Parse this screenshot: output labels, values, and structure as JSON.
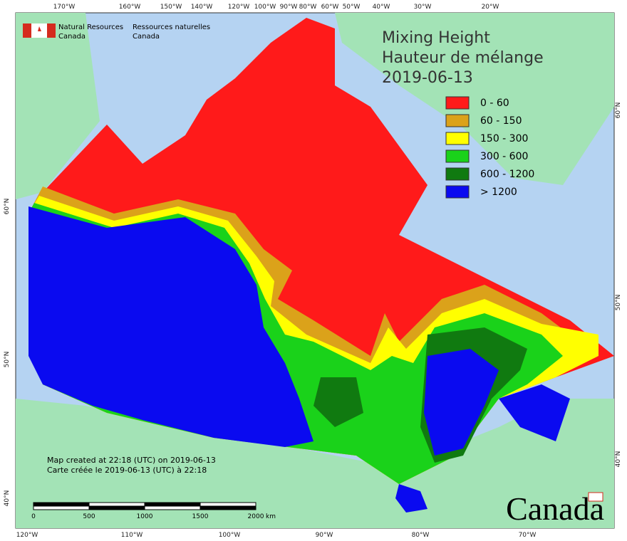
{
  "header": {
    "agency_en": "Natural Resources",
    "country_en": "Canada",
    "agency_fr": "Ressources naturelles",
    "country_fr": "Canada"
  },
  "title": {
    "line1": "Mixing Height",
    "line2": "Hauteur de mélange",
    "date": "2019-06-13"
  },
  "legend": [
    {
      "label": "0 - 60",
      "color": "#ff1a1a"
    },
    {
      "label": "60 - 150",
      "color": "#dba21a"
    },
    {
      "label": "150 - 300",
      "color": "#ffff00"
    },
    {
      "label": "300 - 600",
      "color": "#1ad21a"
    },
    {
      "label": "600 - 1200",
      "color": "#107a10"
    },
    {
      "label": "> 1200",
      "color": "#0a0af0"
    }
  ],
  "graticule": {
    "top": [
      "170°W",
      "160°W",
      "150°W",
      "140°W",
      "120°W",
      "100°W",
      "90°W",
      "80°W",
      "60°W",
      "50°W",
      "40°W",
      "30°W",
      "20°W"
    ],
    "bottom": [
      "120°W",
      "110°W",
      "100°W",
      "90°W",
      "80°W",
      "70°W"
    ],
    "left": [
      "60°N",
      "50°N",
      "40°N"
    ],
    "right": [
      "60°N",
      "50°N",
      "40°N"
    ]
  },
  "notes": {
    "line1": "Map created at 22:18 (UTC) on 2019-06-13",
    "line2": "Carte créée le 2019-06-13 (UTC) à 22:18"
  },
  "scale_bar": {
    "labels": [
      "0",
      "500",
      "1000",
      "1500",
      "2000"
    ],
    "unit": "km"
  },
  "wordmark": "Canada"
}
